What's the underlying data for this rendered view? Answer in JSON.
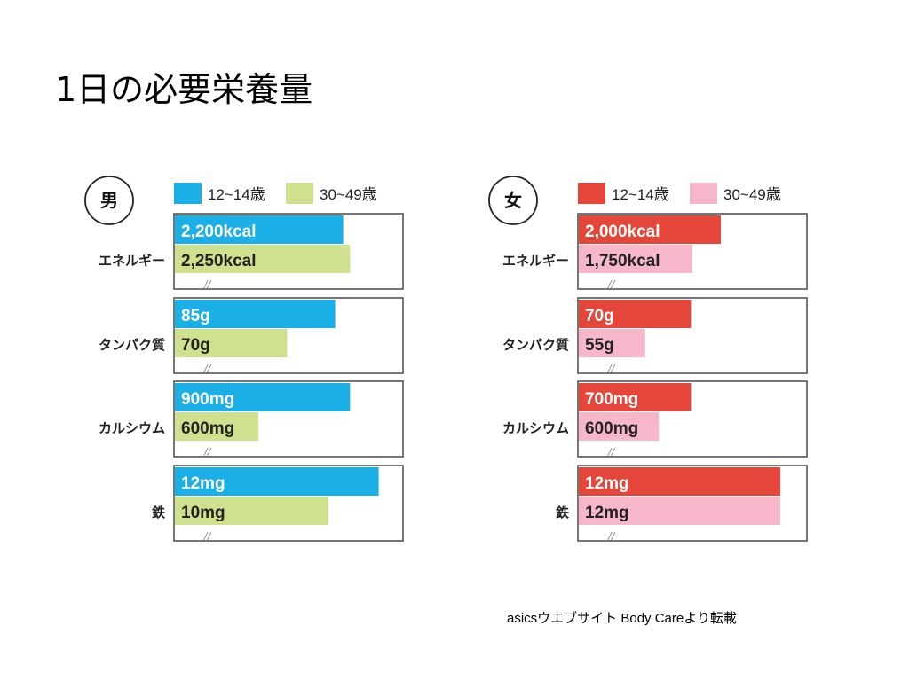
{
  "page": {
    "title": "1日の必要栄養量",
    "source": "asicsウエブサイト Body Careより転載"
  },
  "chart_data": [
    {
      "type": "bar",
      "orientation": "horizontal",
      "panel": "男",
      "categories": [
        "エネルギー",
        "タンパク質",
        "カルシウム",
        "鉄"
      ],
      "series": [
        {
          "name": "12~14歳",
          "color": "#1aafe6",
          "labels": [
            "2,200kcal",
            "85g",
            "900mg",
            "12mg"
          ]
        },
        {
          "name": "30~49歳",
          "color": "#cfe18e",
          "labels": [
            "2,250kcal",
            "70g",
            "600mg",
            "10mg"
          ]
        }
      ],
      "label_colors": [
        "#ffffff",
        "#222222"
      ],
      "bar_fraction": [
        [
          0.735,
          0.7,
          0.765,
          0.89
        ],
        [
          0.765,
          0.49,
          0.365,
          0.67
        ]
      ]
    },
    {
      "type": "bar",
      "orientation": "horizontal",
      "panel": "女",
      "categories": [
        "エネルギー",
        "タンパク質",
        "カルシウム",
        "鉄"
      ],
      "series": [
        {
          "name": "12~14歳",
          "color": "#e5463a",
          "labels": [
            "2,000kcal",
            "70g",
            "700mg",
            "12mg"
          ]
        },
        {
          "name": "30~49歳",
          "color": "#f7b7cb",
          "labels": [
            "1,750kcal",
            "55g",
            "600mg",
            "12mg"
          ]
        }
      ],
      "label_colors": [
        "#ffffff",
        "#222222"
      ],
      "bar_fraction": [
        [
          0.62,
          0.49,
          0.49,
          0.88
        ],
        [
          0.495,
          0.29,
          0.35,
          0.88
        ]
      ]
    }
  ]
}
